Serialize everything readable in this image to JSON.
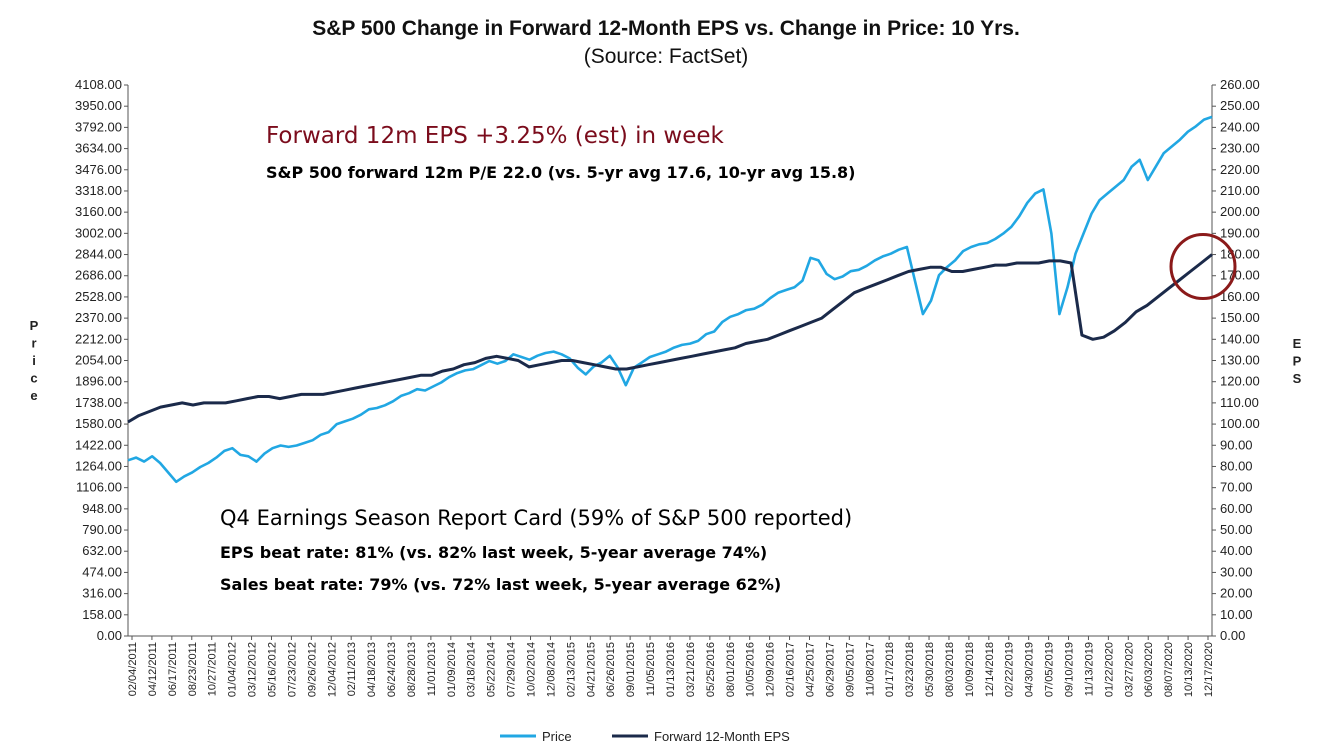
{
  "chart_data": {
    "type": "line",
    "title": "S&P 500 Change in Forward 12-Month EPS vs. Change in Price: 10 Yrs.",
    "subtitle": "(Source: FactSet)",
    "ylabel_left": "Price",
    "ylabel_right": "EPS",
    "ylim_left": [
      0,
      4108
    ],
    "ylim_right": [
      0,
      260
    ],
    "y_ticks_left": [
      "0.00",
      "158.00",
      "316.00",
      "474.00",
      "632.00",
      "790.00",
      "948.00",
      "1106.00",
      "1264.00",
      "1422.00",
      "1580.00",
      "1738.00",
      "1896.00",
      "2054.00",
      "2212.00",
      "2370.00",
      "2528.00",
      "2686.00",
      "2844.00",
      "3002.00",
      "3160.00",
      "3318.00",
      "3476.00",
      "3634.00",
      "3792.00",
      "3950.00",
      "4108.00"
    ],
    "y_ticks_right": [
      "0.00",
      "10.00",
      "20.00",
      "30.00",
      "40.00",
      "50.00",
      "60.00",
      "70.00",
      "80.00",
      "90.00",
      "100.00",
      "110.00",
      "120.00",
      "130.00",
      "140.00",
      "150.00",
      "160.00",
      "170.00",
      "180.00",
      "190.00",
      "200.00",
      "210.00",
      "220.00",
      "230.00",
      "240.00",
      "250.00",
      "260.00"
    ],
    "x_tick_labels": [
      "02/04/2011",
      "04/12/2011",
      "06/17/2011",
      "08/23/2011",
      "10/27/2011",
      "01/04/2012",
      "03/12/2012",
      "05/16/2012",
      "07/23/2012",
      "09/26/2012",
      "12/04/2012",
      "02/11/2013",
      "04/18/2013",
      "06/24/2013",
      "08/28/2013",
      "11/01/2013",
      "01/09/2014",
      "03/18/2014",
      "05/22/2014",
      "07/29/2014",
      "10/02/2014",
      "12/08/2014",
      "02/13/2015",
      "04/21/2015",
      "06/26/2015",
      "09/01/2015",
      "11/05/2015",
      "01/13/2016",
      "03/21/2016",
      "05/25/2016",
      "08/01/2016",
      "10/05/2016",
      "12/09/2016",
      "02/16/2017",
      "04/25/2017",
      "06/29/2017",
      "09/05/2017",
      "11/08/2017",
      "01/17/2018",
      "03/23/2018",
      "05/30/2018",
      "08/03/2018",
      "10/09/2018",
      "12/14/2018",
      "02/22/2019",
      "04/30/2019",
      "07/05/2019",
      "09/10/2019",
      "11/13/2019",
      "01/22/2020",
      "03/27/2020",
      "06/03/2020",
      "08/07/2020",
      "10/13/2020",
      "12/17/2020"
    ],
    "series": [
      {
        "name": "Price",
        "axis": "left",
        "color": "#21a7e3",
        "values": [
          1310,
          1330,
          1300,
          1340,
          1290,
          1220,
          1150,
          1190,
          1220,
          1260,
          1290,
          1330,
          1380,
          1400,
          1350,
          1340,
          1300,
          1360,
          1400,
          1420,
          1410,
          1420,
          1440,
          1460,
          1500,
          1520,
          1580,
          1600,
          1620,
          1650,
          1690,
          1700,
          1720,
          1750,
          1790,
          1810,
          1840,
          1830,
          1860,
          1890,
          1930,
          1960,
          1980,
          1990,
          2020,
          2050,
          2030,
          2050,
          2100,
          2080,
          2060,
          2090,
          2110,
          2120,
          2100,
          2070,
          2000,
          1950,
          2010,
          2040,
          2090,
          2000,
          1870,
          2000,
          2040,
          2080,
          2100,
          2120,
          2150,
          2170,
          2180,
          2200,
          2250,
          2270,
          2340,
          2380,
          2400,
          2430,
          2440,
          2470,
          2520,
          2560,
          2580,
          2600,
          2650,
          2820,
          2800,
          2700,
          2660,
          2680,
          2720,
          2730,
          2760,
          2800,
          2830,
          2850,
          2880,
          2900,
          2650,
          2400,
          2500,
          2690,
          2750,
          2800,
          2870,
          2900,
          2920,
          2930,
          2960,
          3000,
          3050,
          3130,
          3230,
          3300,
          3330,
          3000,
          2400,
          2600,
          2850,
          3000,
          3150,
          3250,
          3300,
          3350,
          3400,
          3500,
          3550,
          3400,
          3500,
          3600,
          3650,
          3700,
          3760,
          3800,
          3850,
          3870
        ],
        "estimated": true
      },
      {
        "name": "Forward 12-Month EPS",
        "axis": "right",
        "color": "#1b2a4a",
        "values": [
          101,
          104,
          106,
          108,
          109,
          110,
          109,
          110,
          110,
          110,
          111,
          112,
          113,
          113,
          112,
          113,
          114,
          114,
          114,
          115,
          116,
          117,
          118,
          119,
          120,
          121,
          122,
          123,
          123,
          125,
          126,
          128,
          129,
          131,
          132,
          131,
          130,
          127,
          128,
          129,
          130,
          130,
          129,
          128,
          127,
          126,
          126,
          127,
          128,
          129,
          130,
          131,
          132,
          133,
          134,
          135,
          136,
          138,
          139,
          140,
          142,
          144,
          146,
          148,
          150,
          154,
          158,
          162,
          164,
          166,
          168,
          170,
          172,
          173,
          174,
          174,
          172,
          172,
          173,
          174,
          175,
          175,
          176,
          176,
          176,
          177,
          177,
          176,
          142,
          140,
          141,
          144,
          148,
          153,
          156,
          160,
          164,
          168,
          172,
          176,
          180
        ],
        "estimated": true
      }
    ],
    "legend": [
      "Price",
      "Forward 12-Month EPS"
    ],
    "legend_position": "bottom",
    "grid": false,
    "highlight": "circle around latest EPS value"
  },
  "annotations": {
    "headline": "Forward 12m EPS +3.25% (est) in week",
    "pe_line": "S&P 500 forward 12m P/E 22.0 (vs. 5-yr avg 17.6, 10-yr avg 15.8)",
    "report_card_title": "Q4 Earnings Season Report Card (59% of S&P 500 reported)",
    "eps_beat": "EPS beat rate: 81% (vs. 82% last week, 5-year average 74%)",
    "sales_beat": "Sales beat rate: 79% (vs. 72% last week, 5-year average 62%)"
  },
  "colors": {
    "price": "#21a7e3",
    "eps": "#1b2a4a",
    "headline": "#7b0c1c",
    "highlight_circle": "#8b1a1a"
  }
}
